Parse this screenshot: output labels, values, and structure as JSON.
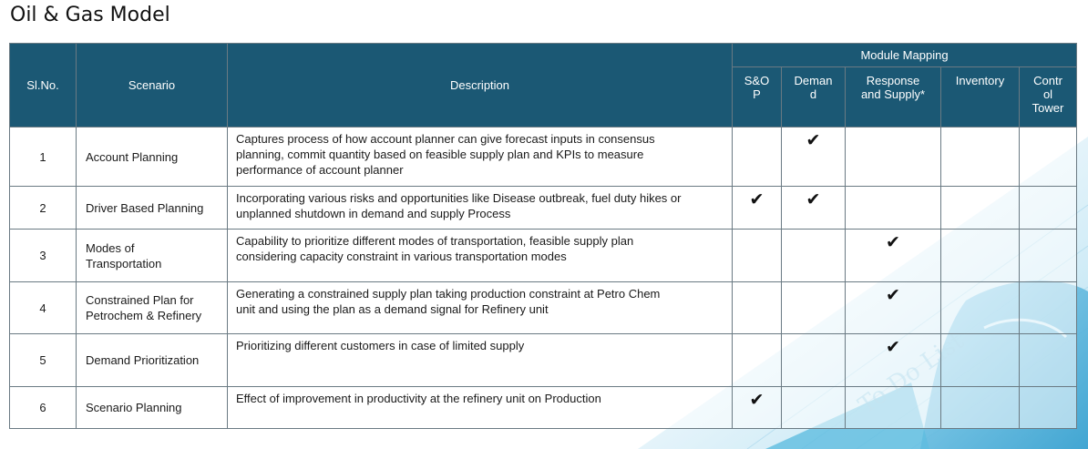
{
  "title": "Oil & Gas Model",
  "headers": {
    "sl_no": "Sl.No.",
    "scenario": "Scenario",
    "description": "Description",
    "module_group": "Module Mapping",
    "modules": [
      {
        "key": "sop",
        "lines": [
          "S&O",
          "P"
        ]
      },
      {
        "key": "demand",
        "lines": [
          "Deman",
          "d"
        ]
      },
      {
        "key": "response_supply",
        "lines": [
          "Response",
          "and Supply*"
        ]
      },
      {
        "key": "inventory",
        "lines": [
          "Inventory"
        ]
      },
      {
        "key": "control_tower",
        "lines": [
          "Contr",
          "ol",
          "Tower"
        ]
      }
    ]
  },
  "check_glyph": "✔",
  "rows": [
    {
      "sl": "1",
      "scenario": [
        "Account Planning"
      ],
      "description": [
        "Captures process of how account planner can give forecast inputs in consensus",
        "planning, commit quantity based on feasible supply plan and KPIs to measure",
        "performance of account planner"
      ],
      "checks": {
        "sop": false,
        "demand": true,
        "response_supply": false,
        "inventory": false,
        "control_tower": false
      }
    },
    {
      "sl": "2",
      "scenario": [
        "Driver Based Planning"
      ],
      "description": [
        "Incorporating various risks and opportunities like Disease outbreak, fuel duty hikes or",
        "unplanned shutdown in demand and supply Process"
      ],
      "checks": {
        "sop": true,
        "demand": true,
        "response_supply": false,
        "inventory": false,
        "control_tower": false
      }
    },
    {
      "sl": "3",
      "scenario": [
        "Modes of",
        "Transportation"
      ],
      "description": [
        "Capability to prioritize different modes of transportation, feasible supply plan",
        "considering capacity constraint in various transportation modes"
      ],
      "checks": {
        "sop": false,
        "demand": false,
        "response_supply": true,
        "inventory": false,
        "control_tower": false
      }
    },
    {
      "sl": "4",
      "scenario": [
        "Constrained Plan for",
        "Petrochem & Refinery"
      ],
      "description": [
        "Generating a constrained supply plan taking production constraint at Petro Chem",
        "unit and using the plan as a demand signal for Refinery unit"
      ],
      "checks": {
        "sop": false,
        "demand": false,
        "response_supply": true,
        "inventory": false,
        "control_tower": false
      }
    },
    {
      "sl": "5",
      "scenario": [
        "Demand Prioritization"
      ],
      "description": [
        "Prioritizing different customers in case of limited supply"
      ],
      "checks": {
        "sop": false,
        "demand": false,
        "response_supply": true,
        "inventory": false,
        "control_tower": false
      }
    },
    {
      "sl": "6",
      "scenario": [
        "Scenario Planning"
      ],
      "description": [
        "Effect of improvement in productivity at the refinery unit on Production"
      ],
      "checks": {
        "sop": true,
        "demand": false,
        "response_supply": false,
        "inventory": false,
        "control_tower": false
      }
    }
  ],
  "background_note_text": "To Do List",
  "colors": {
    "header_bg": "#1b5874",
    "header_text": "#ffffff",
    "border": "#6a7a83",
    "accent_art": "#4fb3d9"
  }
}
